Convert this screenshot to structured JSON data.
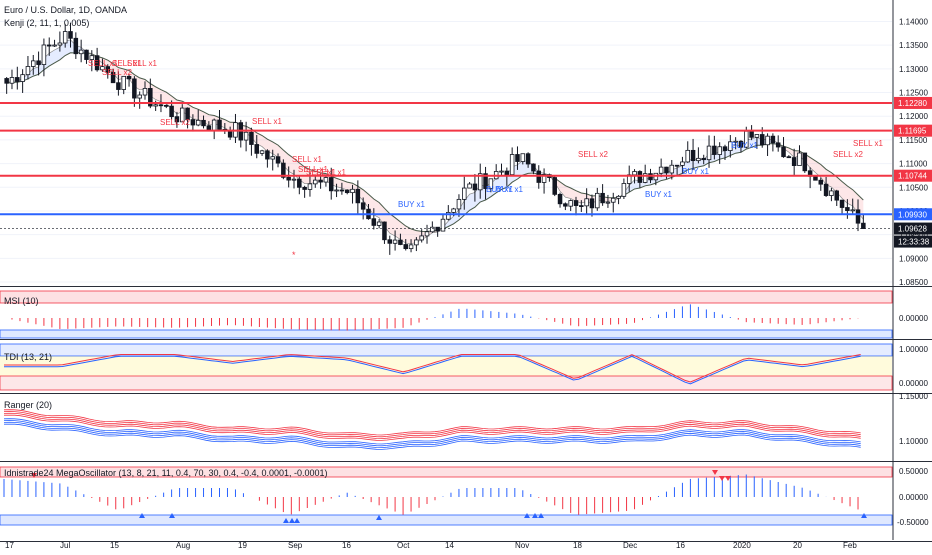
{
  "header": {
    "symbol_line": "Euro / U.S. Dollar, 1D, OANDA",
    "indicator_line": "Kenji (2, 11, 1, 0.005)"
  },
  "price_axis": {
    "ticks": [
      "1.14000",
      "1.13500",
      "1.13000",
      "1.12500",
      "1.12000",
      "1.11500",
      "1.11000",
      "1.10500",
      "1.10000",
      "1.09500",
      "1.09000",
      "1.08500"
    ],
    "badges": [
      {
        "value": "1.12280",
        "color": "#f23645"
      },
      {
        "value": "1.11695",
        "color": "#f23645"
      },
      {
        "value": "1.10744",
        "color": "#f23645"
      },
      {
        "value": "1.09930",
        "color": "#2962ff"
      },
      {
        "value": "1.09628",
        "color": "#131722"
      },
      {
        "value": "12:33:38",
        "color": "#131722"
      }
    ]
  },
  "date_axis": [
    "17",
    "Jul",
    "15",
    "Aug",
    "19",
    "Sep",
    "16",
    "Oct",
    "14",
    "Nov",
    "18",
    "Dec",
    "16",
    "2020",
    "20",
    "Feb"
  ],
  "levels": {
    "red": [
      1.1228,
      1.11695,
      1.10744
    ],
    "blue": 1.0993,
    "last": 1.09628
  },
  "signals": {
    "sell": [
      "SELL x1",
      "SELL x1",
      "SELL x2",
      "SELL x1",
      "SELL x2",
      "SELL x1",
      "SELL x1",
      "SELL x1",
      "SELL x1",
      "SELL x1",
      "SELL x2",
      "SELL x2",
      "SELL x1"
    ],
    "buy": [
      "BUY x1",
      "BUY x1",
      "BUY x1",
      "BUY x1",
      "BUY x1",
      "BUY x1"
    ],
    "star": "*"
  },
  "panels": {
    "msi": {
      "title": "MSI (10)",
      "ticks": [
        "0.00000"
      ]
    },
    "tdi": {
      "title": "TDI (13, 21)",
      "ticks": [
        "1.00000",
        "0.00000"
      ]
    },
    "ranger": {
      "title": "Ranger (20)",
      "ticks": [
        "1.15000",
        "1.10000"
      ]
    },
    "mega": {
      "title": "Idnistrade24 MegaOscillator (13, 8, 21, 11, 0.4, 70, 30, 0.4, -0.4, 0.0001, -0.0001)",
      "ticks": [
        "0.50000",
        "0.00000",
        "-0.50000"
      ]
    }
  },
  "chart_data": [
    {
      "type": "candlestick",
      "title": "Euro / U.S. Dollar, 1D, OANDA",
      "x": [
        "17",
        "Jul",
        "15",
        "Aug",
        "19",
        "Sep",
        "16",
        "Oct",
        "14",
        "Nov",
        "18",
        "Dec",
        "16",
        "2020",
        "20",
        "Feb"
      ],
      "close": [
        1.127,
        1.137,
        1.127,
        1.12,
        1.117,
        1.107,
        1.104,
        1.09,
        1.104,
        1.111,
        1.1,
        1.107,
        1.112,
        1.116,
        1.11,
        1.096
      ],
      "ylim": [
        1.085,
        1.142
      ],
      "last": 1.09628
    },
    {
      "type": "bar",
      "title": "MSI (10)",
      "values": [
        0.0,
        -0.8,
        -0.6,
        -0.7,
        -0.5,
        -0.8,
        -0.9,
        -0.7,
        0.7,
        0.3,
        -0.6,
        -0.4,
        1.0,
        -0.3,
        -0.5,
        0.0
      ]
    },
    {
      "type": "line",
      "title": "TDI (13, 21)",
      "values": [
        0.6,
        0.6,
        0.9,
        0.9,
        0.7,
        0.9,
        0.8,
        0.4,
        0.9,
        0.9,
        0.2,
        0.9,
        0.1,
        0.8,
        0.6,
        0.9
      ],
      "ylim": [
        0,
        1
      ]
    },
    {
      "type": "line",
      "title": "Ranger (20)",
      "values": [
        1.14,
        1.13,
        1.12,
        1.12,
        1.11,
        1.11,
        1.1,
        1.1,
        1.11,
        1.11,
        1.11,
        1.11,
        1.12,
        1.12,
        1.11,
        1.1
      ]
    },
    {
      "type": "bar",
      "title": "Idnistrade24 MegaOscillator",
      "values": [
        0.4,
        0.3,
        -0.3,
        0.2,
        0.2,
        -0.4,
        0.1,
        -0.4,
        0.2,
        0.2,
        -0.4,
        -0.3,
        0.4,
        0.5,
        0.2,
        -0.3
      ],
      "ylim": [
        -0.6,
        0.6
      ]
    }
  ]
}
